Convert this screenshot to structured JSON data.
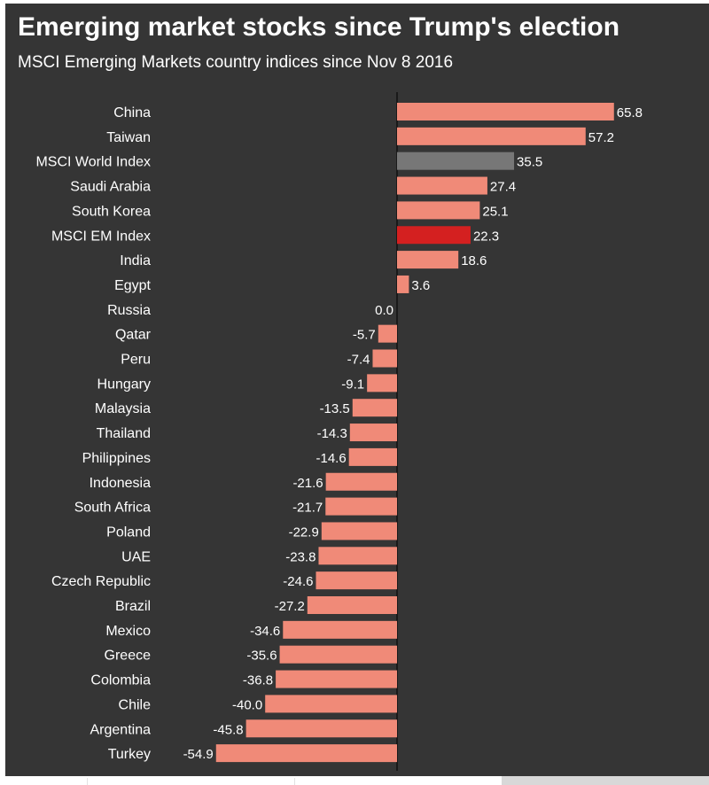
{
  "colors": {
    "background": "#353535",
    "bar_default": "#f08a78",
    "bar_world": "#777777",
    "bar_em": "#d42020",
    "text": "#ffffff",
    "axis": "#111111"
  },
  "chart_data": {
    "type": "bar",
    "orientation": "horizontal",
    "title": "Emerging market stocks since Trump's election",
    "subtitle": "MSCI Emerging Markets country indices since Nov 8 2016",
    "xlabel": "",
    "ylabel": "",
    "xlim": [
      -54.9,
      65.8
    ],
    "categories": [
      "China",
      "Taiwan",
      "MSCI World Index",
      "Saudi Arabia",
      "South Korea",
      "MSCI EM Index",
      "India",
      "Egypt",
      "Russia",
      "Qatar",
      "Peru",
      "Hungary",
      "Malaysia",
      "Thailand",
      "Philippines",
      "Indonesia",
      "South Africa",
      "Poland",
      "UAE",
      "Czech Republic",
      "Brazil",
      "Mexico",
      "Greece",
      "Colombia",
      "Chile",
      "Argentina",
      "Turkey"
    ],
    "values": [
      65.8,
      57.2,
      35.5,
      27.4,
      25.1,
      22.3,
      18.6,
      3.6,
      0.0,
      -5.7,
      -7.4,
      -9.1,
      -13.5,
      -14.3,
      -14.6,
      -21.6,
      -21.7,
      -22.9,
      -23.8,
      -24.6,
      -27.2,
      -34.6,
      -35.6,
      -36.8,
      -40.0,
      -45.8,
      -54.9
    ],
    "labels": [
      "65.8",
      "57.2",
      "35.5",
      "27.4",
      "25.1",
      "22.3",
      "18.6",
      "3.6",
      "0.0",
      "-5.7",
      "-7.4",
      "-9.1",
      "-13.5",
      "-14.3",
      "-14.6",
      "-21.6",
      "-21.7",
      "-22.9",
      "-23.8",
      "-24.6",
      "-27.2",
      "-34.6",
      "-35.6",
      "-36.8",
      "-40.0",
      "-45.8",
      "-54.9"
    ],
    "highlight": {
      "MSCI World Index": "#777777",
      "MSCI EM Index": "#d42020"
    }
  }
}
